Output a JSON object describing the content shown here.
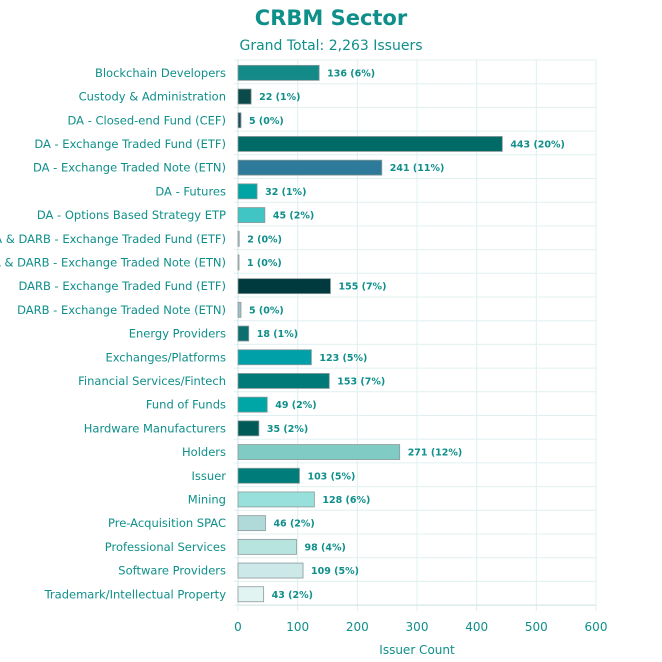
{
  "chart_data": {
    "type": "bar",
    "orientation": "horizontal",
    "title": "CRBM Sector",
    "subtitle": "Grand Total: 2,263 Issuers",
    "xlabel": "Issuer Count",
    "ylabel": "",
    "xlim": [
      0,
      600
    ],
    "xticks": [
      0,
      100,
      200,
      300,
      400,
      500,
      600
    ],
    "grid": true,
    "categories": [
      "Blockchain Developers",
      "Custody & Administration",
      "DA - Closed-end Fund (CEF)",
      "DA - Exchange Traded Fund (ETF)",
      "DA - Exchange Traded Note (ETN)",
      "DA - Futures",
      "DA - Options Based Strategy ETP",
      "DA & DARB - Exchange Traded Fund (ETF)",
      "DA & DARB - Exchange Traded Note (ETN)",
      "DARB - Exchange Traded Fund (ETF)",
      "DARB - Exchange Traded Note (ETN)",
      "Energy Providers",
      "Exchanges/Platforms",
      "Financial Services/Fintech",
      "Fund of Funds",
      "Hardware Manufacturers",
      "Holders",
      "Issuer",
      "Mining",
      "Pre-Acquisition SPAC",
      "Professional Services",
      "Software Providers",
      "Trademark/Intellectual Property"
    ],
    "values": [
      136,
      22,
      5,
      443,
      241,
      32,
      45,
      2,
      1,
      155,
      5,
      18,
      123,
      153,
      49,
      35,
      271,
      103,
      128,
      46,
      98,
      109,
      43
    ],
    "data_labels": [
      "136 (6%)",
      "22 (1%)",
      "5 (0%)",
      "443 (20%)",
      "241 (11%)",
      "32 (1%)",
      "45 (2%)",
      "2 (0%)",
      "1 (0%)",
      "155 (7%)",
      "5 (0%)",
      "18 (1%)",
      "123 (5%)",
      "153 (7%)",
      "49 (2%)",
      "35 (2%)",
      "271 (12%)",
      "103 (5%)",
      "128 (6%)",
      "46 (2%)",
      "98 (4%)",
      "109 (5%)",
      "43 (2%)"
    ],
    "colors": [
      "#138a87",
      "#0a4a4a",
      "#1d4f5a",
      "#006a66",
      "#2e7a9a",
      "#00a3a3",
      "#40c4c4",
      "#b8d0d0",
      "#d8eaea",
      "#003a3f",
      "#a0c0c8",
      "#0d6e70",
      "#00a0a8",
      "#007a78",
      "#00a6a6",
      "#005a58",
      "#80ccc4",
      "#007c7a",
      "#98e0dc",
      "#b0dada",
      "#b8e4e0",
      "#cce8e8",
      "#e2f4f2"
    ]
  }
}
